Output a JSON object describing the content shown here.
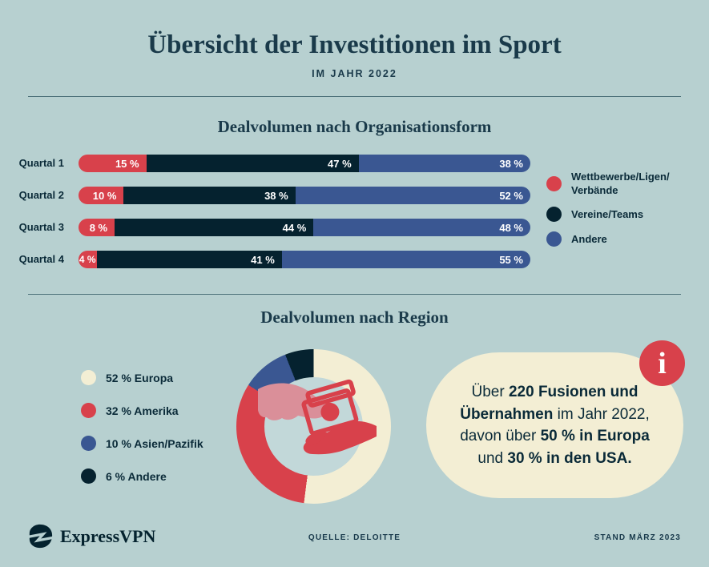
{
  "header": {
    "title": "Übersicht der Investitionen im Sport",
    "subtitle": "IM JAHR 2022"
  },
  "colors": {
    "background": "#B7D0D0",
    "navy": "#05222F",
    "red": "#D8414B",
    "blue": "#3A5792",
    "cream": "#F3EED4",
    "heading_text": "#1A3A4A"
  },
  "chart_data": [
    {
      "type": "bar",
      "orientation": "horizontal_stacked",
      "title": "Dealvolumen nach Organisationsform",
      "unit": "%",
      "categories": [
        "Quartal 1",
        "Quartal 2",
        "Quartal 3",
        "Quartal 4"
      ],
      "series": [
        {
          "name": "Wettbewerbe/Ligen/Verbände",
          "legend_lines": [
            "Wettbewerbe/Ligen/",
            "Verbände"
          ],
          "color": "#D8414B",
          "values": [
            15,
            10,
            8,
            4
          ]
        },
        {
          "name": "Vereine/Teams",
          "legend_lines": [
            "Vereine/Teams"
          ],
          "color": "#05222F",
          "values": [
            47,
            38,
            44,
            41
          ]
        },
        {
          "name": "Andere",
          "legend_lines": [
            "Andere"
          ],
          "color": "#3A5792",
          "values": [
            38,
            52,
            48,
            55
          ]
        }
      ],
      "legend_position": "right"
    },
    {
      "type": "pie",
      "subtype": "donut",
      "title": "Dealvolumen nach Region",
      "unit": "%",
      "slices": [
        {
          "label": "52 % Europa",
          "name": "Europa",
          "value": 52,
          "color": "#F3EED4"
        },
        {
          "label": "32 % Amerika",
          "name": "Amerika",
          "value": 32,
          "color": "#D8414B"
        },
        {
          "label": "10 % Asien/Pazifik",
          "name": "Asien/Pazifik",
          "value": 10,
          "color": "#3A5792"
        },
        {
          "label": "6 % Andere",
          "name": "Andere",
          "value": 6,
          "color": "#05222F"
        }
      ],
      "legend_position": "left",
      "center_icon": "hands-money-icon"
    }
  ],
  "info_card": {
    "icon_glyph": "i",
    "lines": [
      [
        {
          "t": "Über ",
          "b": false
        },
        {
          "t": "220 Fusionen und",
          "b": true
        }
      ],
      [
        {
          "t": "Übernahmen",
          "b": true
        },
        {
          "t": " im Jahr 2022,",
          "b": false
        }
      ],
      [
        {
          "t": "davon über ",
          "b": false
        },
        {
          "t": "50 % in Europa",
          "b": true
        }
      ],
      [
        {
          "t": "und ",
          "b": false
        },
        {
          "t": "30 % in den USA.",
          "b": true
        }
      ]
    ]
  },
  "footer": {
    "brand": "ExpressVPN",
    "source": "QUELLE: DELOITTE",
    "date": "STAND MÄRZ 2023"
  }
}
